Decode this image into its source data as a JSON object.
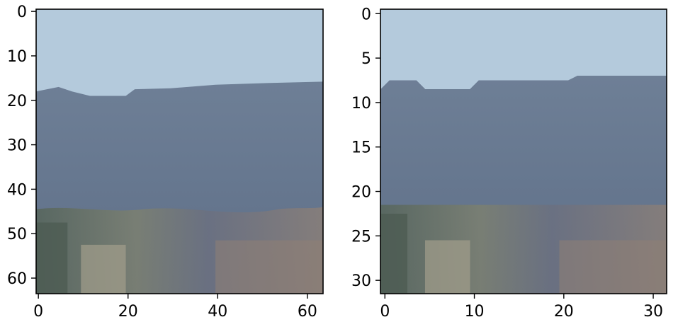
{
  "chart_data": [
    {
      "type": "heatmap",
      "title": "",
      "xlabel": "",
      "ylabel": "",
      "image_size": [
        64,
        64
      ],
      "xlim": [
        -0.5,
        63.5
      ],
      "ylim": [
        63.5,
        -0.5
      ],
      "x_ticks": [
        0,
        20,
        40,
        60
      ],
      "y_ticks": [
        0,
        10,
        20,
        30,
        40,
        50,
        60
      ],
      "x_tick_labels": [
        "0",
        "20",
        "40",
        "60"
      ],
      "y_tick_labels": [
        "0",
        "10",
        "20",
        "30",
        "40",
        "50",
        "60"
      ],
      "grid": false,
      "content": "landscape photo: pale blue sky above a blue-grey forested ridge, trees and brush in the foreground",
      "colors": {
        "sky": "#b4cadc",
        "ridge": "#687a92",
        "foreground": "#5a6655",
        "brush": "#8a8272"
      }
    },
    {
      "type": "heatmap",
      "title": "",
      "xlabel": "",
      "ylabel": "",
      "image_size": [
        32,
        32
      ],
      "xlim": [
        -0.5,
        31.5
      ],
      "ylim": [
        31.5,
        -0.5
      ],
      "x_ticks": [
        0,
        10,
        20,
        30
      ],
      "y_ticks": [
        0,
        5,
        10,
        15,
        20,
        25,
        30
      ],
      "x_tick_labels": [
        "0",
        "10",
        "20",
        "30"
      ],
      "y_tick_labels": [
        "0",
        "5",
        "10",
        "15",
        "20",
        "25",
        "30"
      ],
      "grid": false,
      "content": "same landscape downsampled to 32x32 pixels, visibly blocky",
      "colors": {
        "sky": "#b4cadc",
        "ridge": "#687a92",
        "foreground": "#5a6655",
        "brush": "#8a8272"
      }
    }
  ]
}
